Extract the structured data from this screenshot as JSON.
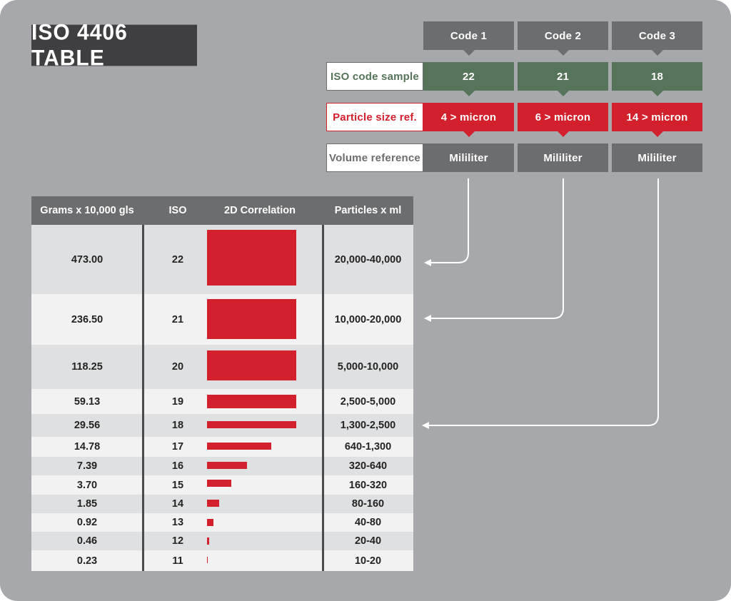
{
  "title": "ISO 4406 TABLE",
  "codes": {
    "headers": [
      "Code 1",
      "Code 2",
      "Code 3"
    ],
    "rows": [
      {
        "label": "ISO code sample",
        "values": [
          "22",
          "21",
          "18"
        ],
        "color": "#557459"
      },
      {
        "label": "Particle size ref.",
        "values": [
          "4 > micron",
          "6 > micron",
          "14 > micron"
        ],
        "color": "#d3202d"
      },
      {
        "label": "Volume reference",
        "values": [
          "Mililiter",
          "Mililiter",
          "Mililiter"
        ],
        "color": "#6c6d6f"
      }
    ]
  },
  "table": {
    "headers": [
      "Grams x 10,000 gls",
      "ISO",
      "2D Correlation",
      "Particles x ml"
    ],
    "rows": [
      {
        "grams": "473.00",
        "iso": "22",
        "particles": "20,000-40,000"
      },
      {
        "grams": "236.50",
        "iso": "21",
        "particles": "10,000-20,000"
      },
      {
        "grams": "118.25",
        "iso": "20",
        "particles": "5,000-10,000"
      },
      {
        "grams": "59.13",
        "iso": "19",
        "particles": "2,500-5,000"
      },
      {
        "grams": "29.56",
        "iso": "18",
        "particles": "1,300-2,500"
      },
      {
        "grams": "14.78",
        "iso": "17",
        "particles": "640-1,300"
      },
      {
        "grams": "7.39",
        "iso": "16",
        "particles": "320-640"
      },
      {
        "grams": "3.70",
        "iso": "15",
        "particles": "160-320"
      },
      {
        "grams": "1.85",
        "iso": "14",
        "particles": "80-160"
      },
      {
        "grams": "0.92",
        "iso": "13",
        "particles": "40-80"
      },
      {
        "grams": "0.46",
        "iso": "12",
        "particles": "20-40"
      },
      {
        "grams": "0.23",
        "iso": "11",
        "particles": "10-20"
      }
    ]
  },
  "colors": {
    "panel": "#a6a8ab",
    "dark": "#3f3f41",
    "header_gray": "#6c6d6f",
    "green": "#557459",
    "red": "#d3202d"
  }
}
